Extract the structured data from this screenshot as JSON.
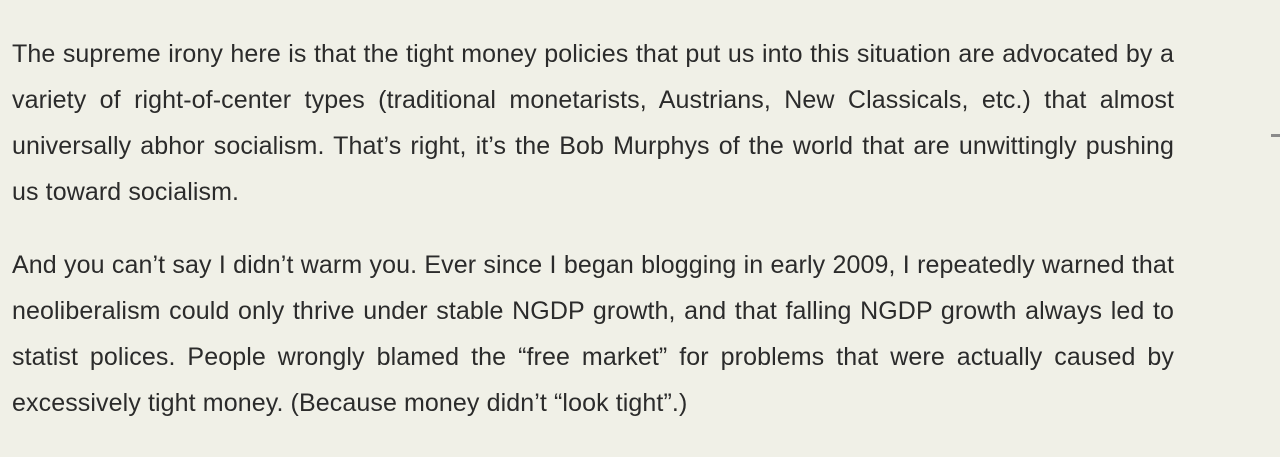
{
  "article": {
    "paragraphs": [
      "The supreme irony here is that the tight money policies that put us into this situation are advocated by a variety of right-of-center types (traditional monetarists, Austrians, New Classicals, etc.) that almost universally abhor socialism. That’s right, it’s the Bob Murphys of the world that are unwittingly pushing us toward socialism.",
      "And you can’t say I didn’t warm you. Ever since I began blogging in early 2009, I repeatedly warned that neoliberalism could only thrive under stable NGDP growth, and that falling NGDP growth always led to statist polices. People wrongly blamed the “free market” for problems that were actually caused by excessively tight money. (Because money didn’t “look tight”.)"
    ]
  }
}
